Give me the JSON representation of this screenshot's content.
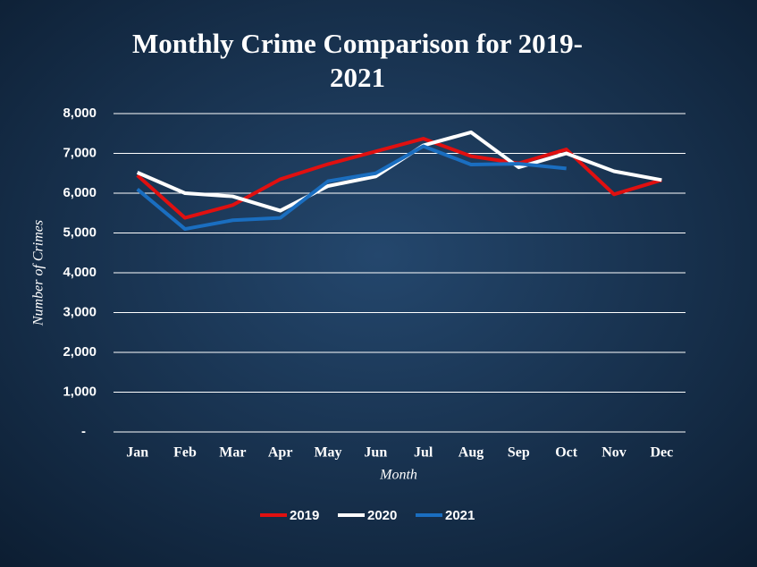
{
  "chart_data": {
    "type": "line",
    "title": "Monthly Crime Comparison for 2019-2021",
    "x_label": "Month",
    "y_label": "Number of Crimes",
    "categories": [
      "Jan",
      "Feb",
      "Mar",
      "Apr",
      "May",
      "Jun",
      "Jul",
      "Aug",
      "Sep",
      "Oct",
      "Nov",
      "Dec"
    ],
    "series": [
      {
        "name": "2019",
        "color": "#e01010",
        "values": [
          6450,
          5380,
          5700,
          6350,
          6730,
          7050,
          7370,
          6930,
          6750,
          7100,
          5970,
          6330
        ]
      },
      {
        "name": "2020",
        "color": "#ffffff",
        "values": [
          6520,
          6000,
          5920,
          5560,
          6180,
          6420,
          7200,
          7530,
          6650,
          7000,
          6550,
          6330
        ]
      },
      {
        "name": "2021",
        "color": "#1a6ec0",
        "values": [
          6100,
          5100,
          5320,
          5380,
          6300,
          6500,
          7180,
          6720,
          6740,
          6620,
          null,
          null
        ]
      }
    ],
    "ylim": [
      0,
      8000
    ],
    "yticks": [
      {
        "value": 0,
        "label": "-"
      },
      {
        "value": 1000,
        "label": "1,000"
      },
      {
        "value": 2000,
        "label": "2,000"
      },
      {
        "value": 3000,
        "label": "3,000"
      },
      {
        "value": 4000,
        "label": "4,000"
      },
      {
        "value": 5000,
        "label": "5,000"
      },
      {
        "value": 6000,
        "label": "6,000"
      },
      {
        "value": 7000,
        "label": "7,000"
      },
      {
        "value": 8000,
        "label": "8,000"
      }
    ],
    "grid": true,
    "legend": "bottom"
  }
}
